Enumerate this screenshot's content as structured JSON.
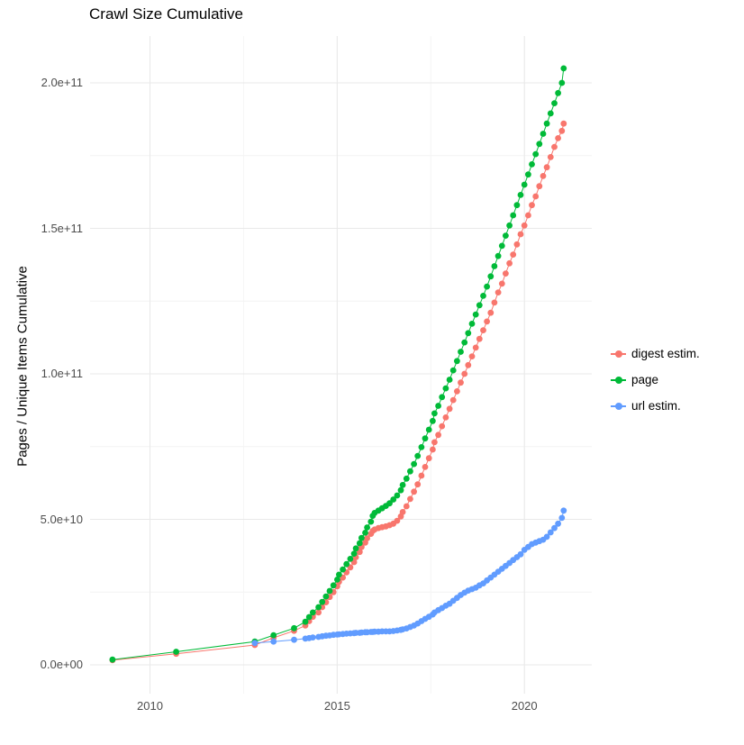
{
  "page": {
    "title": "Crawl Size Cumulative"
  },
  "axes": {
    "y_label": "Pages / Unique Items Cumulative",
    "x_ticks": [
      {
        "value": 2010,
        "label": "2010"
      },
      {
        "value": 2015,
        "label": "2015"
      },
      {
        "value": 2020,
        "label": "2020"
      }
    ],
    "y_ticks": [
      {
        "value": 0,
        "label": "0.0e+00"
      },
      {
        "value": 50,
        "label": "5.0e+10"
      },
      {
        "value": 100,
        "label": "1.0e+11"
      },
      {
        "value": 150,
        "label": "1.5e+11"
      },
      {
        "value": 200,
        "label": "2.0e+11"
      }
    ]
  },
  "legend": {
    "items": [
      {
        "label": "digest estim.",
        "color": "#F8766D"
      },
      {
        "label": "page",
        "color": "#00BA38"
      },
      {
        "label": "url estim.",
        "color": "#619CFF"
      }
    ]
  },
  "chart_data": {
    "type": "scatter",
    "title": "Crawl Size Cumulative",
    "xlabel": "",
    "ylabel": "Pages / Unique Items Cumulative",
    "xlim": [
      2008.4,
      2021.8
    ],
    "ylim": [
      0,
      210
    ],
    "y_unit": "1e9",
    "grid": true,
    "legend_position": "right",
    "minor_gridlines": {
      "x": [
        2012.5,
        2017.5
      ],
      "y": [
        25,
        75,
        125,
        175
      ]
    },
    "series": [
      {
        "name": "digest estim.",
        "color": "#F8766D",
        "points": [
          [
            2009.0,
            1.6
          ],
          [
            2010.7,
            3.8
          ],
          [
            2012.8,
            6.8
          ],
          [
            2013.3,
            9.3
          ],
          [
            2013.85,
            11.7
          ],
          [
            2014.15,
            13.5
          ],
          [
            2014.25,
            15.0
          ],
          [
            2014.35,
            16.5
          ],
          [
            2014.5,
            18.0
          ],
          [
            2014.6,
            19.8
          ],
          [
            2014.7,
            21.5
          ],
          [
            2014.8,
            23.3
          ],
          [
            2014.9,
            25.0
          ],
          [
            2015.0,
            27.0
          ],
          [
            2015.05,
            28.5
          ],
          [
            2015.15,
            30.0
          ],
          [
            2015.25,
            31.8
          ],
          [
            2015.35,
            33.5
          ],
          [
            2015.45,
            35.3
          ],
          [
            2015.5,
            37.0
          ],
          [
            2015.6,
            38.8
          ],
          [
            2015.65,
            40.5
          ],
          [
            2015.75,
            42.0
          ],
          [
            2015.8,
            43.5
          ],
          [
            2015.9,
            45.0
          ],
          [
            2015.95,
            46.0
          ],
          [
            2016.0,
            46.5
          ],
          [
            2016.1,
            47.0
          ],
          [
            2016.2,
            47.3
          ],
          [
            2016.3,
            47.6
          ],
          [
            2016.4,
            48.0
          ],
          [
            2016.5,
            48.5
          ],
          [
            2016.6,
            49.5
          ],
          [
            2016.7,
            51.0
          ],
          [
            2016.75,
            52.5
          ],
          [
            2016.85,
            54.5
          ],
          [
            2016.95,
            57.0
          ],
          [
            2017.05,
            59.5
          ],
          [
            2017.15,
            62.0
          ],
          [
            2017.25,
            65.0
          ],
          [
            2017.35,
            68.0
          ],
          [
            2017.45,
            71.0
          ],
          [
            2017.55,
            74.0
          ],
          [
            2017.6,
            76.5
          ],
          [
            2017.7,
            79.0
          ],
          [
            2017.8,
            82.0
          ],
          [
            2017.9,
            85.0
          ],
          [
            2018.0,
            88.0
          ],
          [
            2018.1,
            91.0
          ],
          [
            2018.2,
            94.0
          ],
          [
            2018.3,
            97.0
          ],
          [
            2018.4,
            100.0
          ],
          [
            2018.5,
            103.0
          ],
          [
            2018.6,
            106.0
          ],
          [
            2018.7,
            109.0
          ],
          [
            2018.8,
            112.0
          ],
          [
            2018.9,
            115.0
          ],
          [
            2019.0,
            118.0
          ],
          [
            2019.1,
            121.0
          ],
          [
            2019.2,
            124.5
          ],
          [
            2019.3,
            128.0
          ],
          [
            2019.4,
            131.0
          ],
          [
            2019.5,
            134.5
          ],
          [
            2019.6,
            138.0
          ],
          [
            2019.7,
            141.0
          ],
          [
            2019.8,
            144.5
          ],
          [
            2019.9,
            148.0
          ],
          [
            2020.0,
            151.0
          ],
          [
            2020.1,
            154.5
          ],
          [
            2020.2,
            158.0
          ],
          [
            2020.3,
            161.0
          ],
          [
            2020.4,
            164.5
          ],
          [
            2020.5,
            168.0
          ],
          [
            2020.6,
            171.0
          ],
          [
            2020.7,
            174.5
          ],
          [
            2020.8,
            178.0
          ],
          [
            2020.9,
            181.0
          ],
          [
            2021.0,
            183.5
          ],
          [
            2021.05,
            186.0
          ]
        ]
      },
      {
        "name": "page",
        "color": "#00BA38",
        "points": [
          [
            2009.0,
            1.8
          ],
          [
            2010.7,
            4.5
          ],
          [
            2012.8,
            8.0
          ],
          [
            2013.3,
            10.2
          ],
          [
            2013.85,
            12.6
          ],
          [
            2014.15,
            14.8
          ],
          [
            2014.25,
            16.4
          ],
          [
            2014.35,
            18.0
          ],
          [
            2014.5,
            19.8
          ],
          [
            2014.6,
            21.6
          ],
          [
            2014.7,
            23.5
          ],
          [
            2014.8,
            25.4
          ],
          [
            2014.9,
            27.3
          ],
          [
            2015.0,
            29.3
          ],
          [
            2015.05,
            31.0
          ],
          [
            2015.15,
            32.8
          ],
          [
            2015.25,
            34.6
          ],
          [
            2015.35,
            36.4
          ],
          [
            2015.45,
            38.2
          ],
          [
            2015.5,
            40.0
          ],
          [
            2015.6,
            41.8
          ],
          [
            2015.65,
            43.6
          ],
          [
            2015.75,
            45.4
          ],
          [
            2015.8,
            47.2
          ],
          [
            2015.9,
            49.2
          ],
          [
            2015.95,
            51.2
          ],
          [
            2016.0,
            52.2
          ],
          [
            2016.1,
            53.0
          ],
          [
            2016.2,
            53.8
          ],
          [
            2016.3,
            54.6
          ],
          [
            2016.4,
            55.5
          ],
          [
            2016.5,
            56.8
          ],
          [
            2016.6,
            58.2
          ],
          [
            2016.7,
            60.0
          ],
          [
            2016.75,
            61.8
          ],
          [
            2016.85,
            64.0
          ],
          [
            2016.95,
            66.5
          ],
          [
            2017.05,
            69.0
          ],
          [
            2017.15,
            71.8
          ],
          [
            2017.25,
            74.8
          ],
          [
            2017.35,
            77.8
          ],
          [
            2017.45,
            80.8
          ],
          [
            2017.55,
            83.8
          ],
          [
            2017.6,
            86.4
          ],
          [
            2017.7,
            89.0
          ],
          [
            2017.8,
            92.0
          ],
          [
            2017.9,
            95.0
          ],
          [
            2018.0,
            98.0
          ],
          [
            2018.1,
            101.2
          ],
          [
            2018.2,
            104.4
          ],
          [
            2018.3,
            107.6
          ],
          [
            2018.4,
            110.8
          ],
          [
            2018.5,
            114.0
          ],
          [
            2018.6,
            117.2
          ],
          [
            2018.7,
            120.4
          ],
          [
            2018.8,
            123.6
          ],
          [
            2018.9,
            126.8
          ],
          [
            2019.0,
            130.0
          ],
          [
            2019.1,
            133.5
          ],
          [
            2019.2,
            137.0
          ],
          [
            2019.3,
            140.5
          ],
          [
            2019.4,
            144.0
          ],
          [
            2019.5,
            147.5
          ],
          [
            2019.6,
            151.0
          ],
          [
            2019.7,
            154.5
          ],
          [
            2019.8,
            158.0
          ],
          [
            2019.9,
            161.5
          ],
          [
            2020.0,
            165.0
          ],
          [
            2020.1,
            168.5
          ],
          [
            2020.2,
            172.0
          ],
          [
            2020.3,
            175.5
          ],
          [
            2020.4,
            179.0
          ],
          [
            2020.5,
            182.5
          ],
          [
            2020.6,
            186.0
          ],
          [
            2020.7,
            189.5
          ],
          [
            2020.8,
            193.0
          ],
          [
            2020.9,
            196.5
          ],
          [
            2021.0,
            200.0
          ],
          [
            2021.05,
            205.0
          ]
        ]
      },
      {
        "name": "url estim.",
        "color": "#619CFF",
        "points": [
          [
            2012.8,
            7.5
          ],
          [
            2013.3,
            8.0
          ],
          [
            2013.85,
            8.6
          ],
          [
            2014.15,
            9.0
          ],
          [
            2014.25,
            9.2
          ],
          [
            2014.35,
            9.4
          ],
          [
            2014.5,
            9.6
          ],
          [
            2014.6,
            9.8
          ],
          [
            2014.7,
            10.0
          ],
          [
            2014.8,
            10.1
          ],
          [
            2014.9,
            10.3
          ],
          [
            2015.0,
            10.4
          ],
          [
            2015.05,
            10.5
          ],
          [
            2015.15,
            10.6
          ],
          [
            2015.25,
            10.7
          ],
          [
            2015.35,
            10.8
          ],
          [
            2015.45,
            10.9
          ],
          [
            2015.5,
            11.0
          ],
          [
            2015.6,
            11.0
          ],
          [
            2015.65,
            11.1
          ],
          [
            2015.75,
            11.2
          ],
          [
            2015.8,
            11.2
          ],
          [
            2015.9,
            11.3
          ],
          [
            2015.95,
            11.3
          ],
          [
            2016.0,
            11.4
          ],
          [
            2016.1,
            11.4
          ],
          [
            2016.2,
            11.5
          ],
          [
            2016.3,
            11.5
          ],
          [
            2016.4,
            11.5
          ],
          [
            2016.5,
            11.6
          ],
          [
            2016.6,
            11.8
          ],
          [
            2016.7,
            12.0
          ],
          [
            2016.75,
            12.2
          ],
          [
            2016.85,
            12.5
          ],
          [
            2016.95,
            13.0
          ],
          [
            2017.05,
            13.5
          ],
          [
            2017.15,
            14.2
          ],
          [
            2017.25,
            15.0
          ],
          [
            2017.35,
            15.8
          ],
          [
            2017.45,
            16.5
          ],
          [
            2017.55,
            17.3
          ],
          [
            2017.6,
            18.0
          ],
          [
            2017.7,
            18.8
          ],
          [
            2017.8,
            19.5
          ],
          [
            2017.9,
            20.3
          ],
          [
            2018.0,
            21.0
          ],
          [
            2018.1,
            22.0
          ],
          [
            2018.2,
            23.0
          ],
          [
            2018.3,
            24.0
          ],
          [
            2018.4,
            24.8
          ],
          [
            2018.5,
            25.5
          ],
          [
            2018.6,
            26.0
          ],
          [
            2018.7,
            26.5
          ],
          [
            2018.8,
            27.3
          ],
          [
            2018.9,
            28.0
          ],
          [
            2019.0,
            29.0
          ],
          [
            2019.1,
            30.0
          ],
          [
            2019.2,
            31.0
          ],
          [
            2019.3,
            32.0
          ],
          [
            2019.4,
            33.0
          ],
          [
            2019.5,
            34.0
          ],
          [
            2019.6,
            35.0
          ],
          [
            2019.7,
            36.0
          ],
          [
            2019.8,
            37.0
          ],
          [
            2019.9,
            38.0
          ],
          [
            2020.0,
            39.5
          ],
          [
            2020.1,
            40.5
          ],
          [
            2020.2,
            41.5
          ],
          [
            2020.3,
            42.0
          ],
          [
            2020.4,
            42.5
          ],
          [
            2020.5,
            43.0
          ],
          [
            2020.6,
            44.0
          ],
          [
            2020.7,
            45.5
          ],
          [
            2020.8,
            47.0
          ],
          [
            2020.9,
            48.5
          ],
          [
            2021.0,
            50.5
          ],
          [
            2021.05,
            53.0
          ]
        ]
      }
    ]
  }
}
